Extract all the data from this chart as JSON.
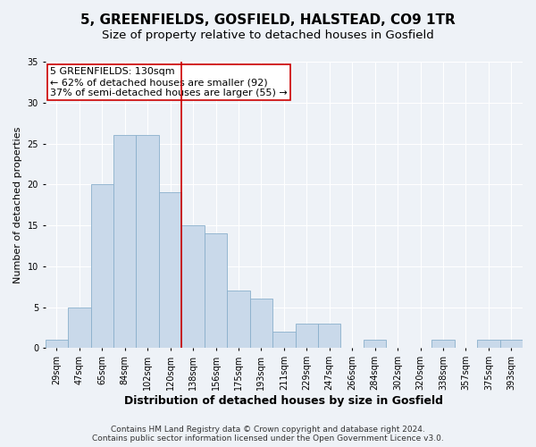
{
  "title": "5, GREENFIELDS, GOSFIELD, HALSTEAD, CO9 1TR",
  "subtitle": "Size of property relative to detached houses in Gosfield",
  "xlabel": "Distribution of detached houses by size in Gosfield",
  "ylabel": "Number of detached properties",
  "categories": [
    "29sqm",
    "47sqm",
    "65sqm",
    "84sqm",
    "102sqm",
    "120sqm",
    "138sqm",
    "156sqm",
    "175sqm",
    "193sqm",
    "211sqm",
    "229sqm",
    "247sqm",
    "266sqm",
    "284sqm",
    "302sqm",
    "320sqm",
    "338sqm",
    "357sqm",
    "375sqm",
    "393sqm"
  ],
  "values": [
    1,
    5,
    20,
    26,
    26,
    19,
    15,
    14,
    7,
    6,
    2,
    3,
    3,
    0,
    1,
    0,
    0,
    1,
    0,
    1,
    1
  ],
  "bar_color": "#c9d9ea",
  "bar_edge_color": "#8ab0cc",
  "vline_x_index": 5,
  "vline_color": "#cc0000",
  "annotation_text": "5 GREENFIELDS: 130sqm\n← 62% of detached houses are smaller (92)\n37% of semi-detached houses are larger (55) →",
  "annotation_box_facecolor": "#ffffff",
  "annotation_box_edgecolor": "#cc0000",
  "ylim": [
    0,
    35
  ],
  "yticks": [
    0,
    5,
    10,
    15,
    20,
    25,
    30,
    35
  ],
  "footer_line1": "Contains HM Land Registry data © Crown copyright and database right 2024.",
  "footer_line2": "Contains public sector information licensed under the Open Government Licence v3.0.",
  "background_color": "#eef2f7",
  "plot_background_color": "#eef2f7",
  "grid_color": "#ffffff",
  "title_fontsize": 11,
  "subtitle_fontsize": 9.5,
  "xlabel_fontsize": 9,
  "ylabel_fontsize": 8,
  "tick_fontsize": 7,
  "annotation_fontsize": 8,
  "footer_fontsize": 6.5
}
